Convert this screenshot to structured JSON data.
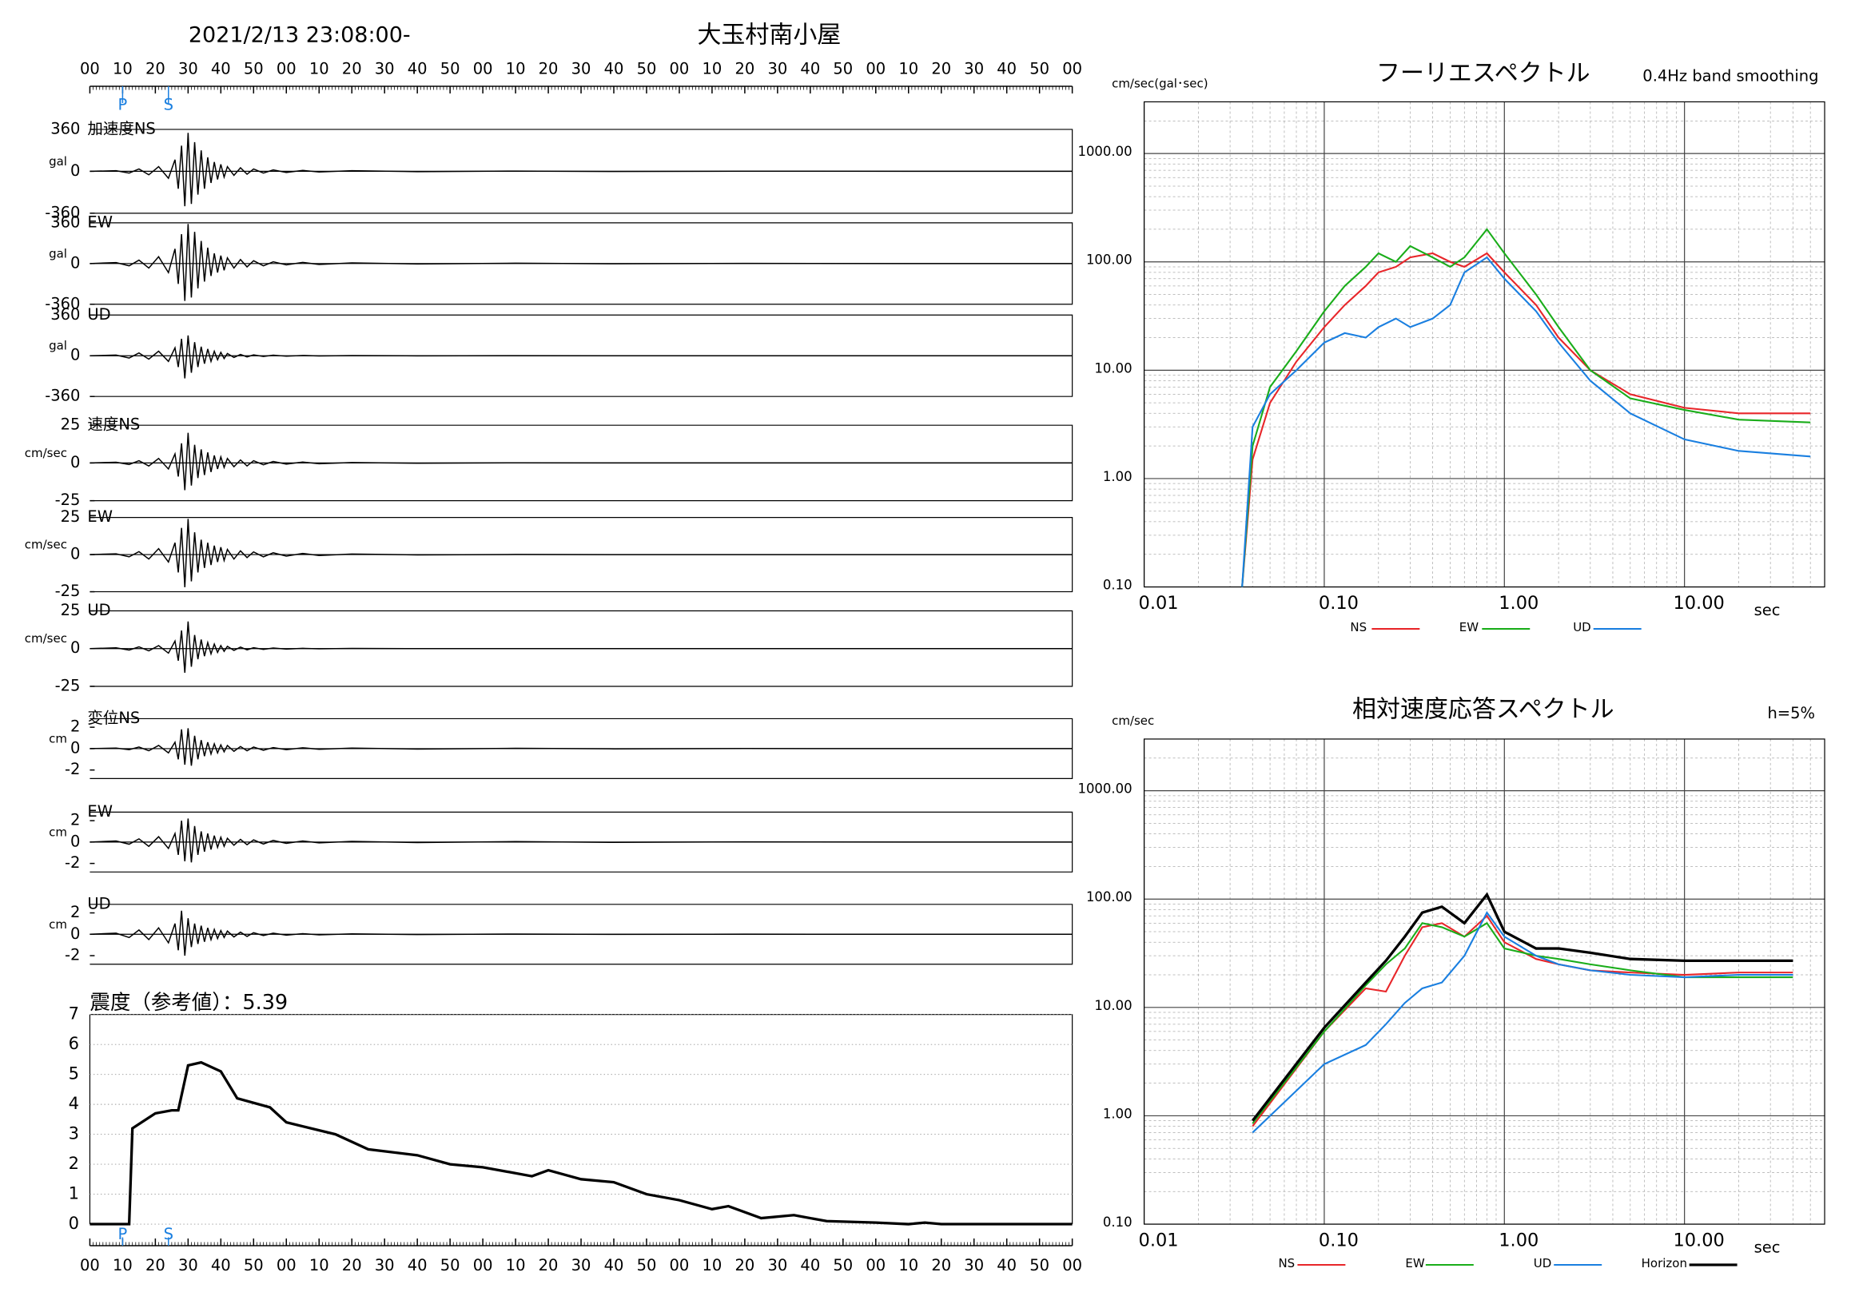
{
  "chart_data": [
    {
      "type": "line",
      "title": "2021/2/13 23:08:00-",
      "subtitle": "大玉村南小屋",
      "xlim": [
        0,
        300
      ],
      "xticks": [
        {
          "value": 0,
          "label": "00"
        },
        {
          "value": 10,
          "label": "10"
        },
        {
          "value": 20,
          "label": "20"
        },
        {
          "value": 30,
          "label": "30"
        },
        {
          "value": 40,
          "label": "40"
        },
        {
          "value": 50,
          "label": "50"
        },
        {
          "value": 60,
          "label": "00"
        },
        {
          "value": 70,
          "label": "10"
        },
        {
          "value": 80,
          "label": "20"
        },
        {
          "value": 90,
          "label": "30"
        },
        {
          "value": 100,
          "label": "40"
        },
        {
          "value": 110,
          "label": "50"
        },
        {
          "value": 120,
          "label": "00"
        },
        {
          "value": 130,
          "label": "10"
        },
        {
          "value": 140,
          "label": "20"
        },
        {
          "value": 150,
          "label": "30"
        },
        {
          "value": 160,
          "label": "40"
        },
        {
          "value": 170,
          "label": "50"
        },
        {
          "value": 180,
          "label": "00"
        },
        {
          "value": 190,
          "label": "10"
        },
        {
          "value": 200,
          "label": "20"
        },
        {
          "value": 210,
          "label": "30"
        },
        {
          "value": 220,
          "label": "40"
        },
        {
          "value": 230,
          "label": "50"
        },
        {
          "value": 240,
          "label": "00"
        },
        {
          "value": 250,
          "label": "10"
        },
        {
          "value": 260,
          "label": "20"
        },
        {
          "value": 270,
          "label": "30"
        },
        {
          "value": 280,
          "label": "40"
        },
        {
          "value": 290,
          "label": "50"
        },
        {
          "value": 300,
          "label": "00"
        }
      ],
      "phases": [
        {
          "label": "P",
          "value": 10
        },
        {
          "label": "S",
          "value": 24
        }
      ],
      "phase_color": "#1a7fe0",
      "x": [
        0,
        8,
        12,
        15,
        18,
        21,
        24,
        26,
        27,
        28,
        29,
        30,
        31,
        32,
        33,
        34,
        35,
        36,
        37,
        38,
        39,
        40,
        41,
        42,
        44,
        46,
        48,
        50,
        53,
        56,
        60,
        65,
        70,
        80,
        100,
        130,
        160,
        200,
        250,
        300
      ],
      "panels": [
        {
          "label": "加速度NS",
          "unit": "gal",
          "ylim": [
            -360,
            360
          ],
          "yticks": [
            -360,
            0,
            360
          ],
          "color": "#000000",
          "values": [
            0,
            5,
            -15,
            20,
            -30,
            40,
            -60,
            100,
            -150,
            220,
            -300,
            330,
            -280,
            250,
            -200,
            180,
            -150,
            120,
            -100,
            80,
            -70,
            60,
            -50,
            40,
            -35,
            30,
            -25,
            20,
            -15,
            12,
            -10,
            8,
            -6,
            5,
            -3,
            2,
            -2,
            1,
            0,
            0
          ]
        },
        {
          "label": "EW",
          "unit": "gal",
          "ylim": [
            -360,
            360
          ],
          "yticks": [
            -360,
            0,
            360
          ],
          "color": "#000000",
          "values": [
            0,
            8,
            -20,
            30,
            -40,
            60,
            -80,
            130,
            -180,
            260,
            -330,
            350,
            -300,
            280,
            -220,
            200,
            -160,
            140,
            -110,
            90,
            -80,
            70,
            -60,
            50,
            -40,
            35,
            -30,
            25,
            -20,
            15,
            -12,
            10,
            -8,
            6,
            -4,
            3,
            -2,
            1,
            0,
            0
          ]
        },
        {
          "label": "UD",
          "unit": "gal",
          "ylim": [
            -360,
            360
          ],
          "yticks": [
            -360,
            0,
            360
          ],
          "color": "#000000",
          "values": [
            0,
            6,
            -20,
            25,
            -30,
            40,
            -50,
            70,
            -100,
            150,
            -200,
            180,
            -150,
            120,
            -100,
            80,
            -70,
            60,
            -50,
            40,
            -35,
            30,
            -25,
            20,
            -15,
            12,
            -10,
            8,
            -6,
            5,
            -4,
            3,
            -2,
            2,
            -1,
            1,
            0,
            0,
            0,
            0
          ]
        },
        {
          "label": "速度NS",
          "unit": "cm/sec",
          "ylim": [
            -25,
            25
          ],
          "yticks": [
            -25,
            0,
            25
          ],
          "color": "#000000",
          "values": [
            0,
            0.5,
            -1,
            1.5,
            -2,
            3,
            -4,
            6,
            -9,
            13,
            -18,
            20,
            -15,
            12,
            -10,
            9,
            -8,
            7,
            -6,
            5,
            -4,
            4,
            -3,
            3,
            -2.5,
            2,
            -2,
            1.5,
            -1.2,
            1,
            -0.8,
            0.6,
            -0.5,
            0.3,
            -0.2,
            0.1,
            0,
            0,
            0,
            0
          ]
        },
        {
          "label": "EW",
          "unit": "cm/sec",
          "ylim": [
            -25,
            25
          ],
          "yticks": [
            -25,
            0,
            25
          ],
          "color": "#000000",
          "values": [
            0,
            0.5,
            -1.5,
            2,
            -3,
            4,
            -5,
            8,
            -12,
            18,
            -22,
            24,
            -18,
            15,
            -12,
            10,
            -9,
            8,
            -7,
            6,
            -5,
            5,
            -4,
            3.5,
            -3,
            2.5,
            -2,
            1.8,
            -1.5,
            1.2,
            -1,
            0.8,
            -0.6,
            0.4,
            -0.2,
            0.1,
            0,
            0,
            0,
            0
          ]
        },
        {
          "label": "UD",
          "unit": "cm/sec",
          "ylim": [
            -25,
            25
          ],
          "yticks": [
            -25,
            0,
            25
          ],
          "color": "#000000",
          "values": [
            0,
            0.5,
            -1,
            1.2,
            -1.5,
            2,
            -3,
            5,
            -8,
            12,
            -16,
            18,
            -12,
            9,
            -7,
            6,
            -5,
            4,
            -3.5,
            3,
            -2.5,
            2,
            -1.8,
            1.5,
            -1.2,
            1,
            -0.8,
            0.6,
            -0.5,
            0.4,
            -0.3,
            0.2,
            -0.1,
            0.1,
            0,
            0,
            0,
            0,
            0,
            0
          ]
        },
        {
          "label": "変位NS",
          "unit": "cm",
          "ylim": [
            -2.8,
            2.8
          ],
          "yticks": [
            -2,
            0,
            2
          ],
          "color": "#000000",
          "values": [
            0,
            0.05,
            -0.1,
            0.15,
            -0.2,
            0.3,
            -0.4,
            0.6,
            -1,
            1.8,
            -1.5,
            1.9,
            -1.6,
            1.2,
            -1,
            0.8,
            -0.7,
            0.6,
            -0.5,
            0.45,
            -0.4,
            0.35,
            -0.3,
            0.3,
            -0.25,
            0.2,
            -0.2,
            0.15,
            -0.15,
            0.1,
            -0.1,
            0.08,
            -0.06,
            0.05,
            -0.04,
            0.03,
            -0.02,
            0.01,
            0,
            0
          ]
        },
        {
          "label": "EW",
          "unit": "cm",
          "ylim": [
            -2.8,
            2.8
          ],
          "yticks": [
            -2,
            0,
            2
          ],
          "color": "#000000",
          "values": [
            0,
            0.1,
            -0.2,
            0.3,
            -0.4,
            0.5,
            -0.6,
            0.8,
            -1.2,
            2,
            -1.8,
            2.2,
            -1.9,
            1.5,
            -1.2,
            1,
            -0.9,
            0.8,
            -0.7,
            0.6,
            -0.5,
            0.45,
            -0.4,
            0.35,
            -0.3,
            0.25,
            -0.25,
            0.2,
            -0.18,
            0.15,
            -0.12,
            0.1,
            -0.08,
            0.06,
            -0.05,
            0.04,
            -0.03,
            0.02,
            0,
            0
          ]
        },
        {
          "label": "UD",
          "unit": "cm",
          "ylim": [
            -2.8,
            2.8
          ],
          "yticks": [
            -2,
            0,
            2
          ],
          "color": "#000000",
          "values": [
            0,
            0.1,
            -0.3,
            0.4,
            -0.5,
            0.6,
            -0.8,
            1,
            -1.5,
            2.2,
            -2,
            1.5,
            -1.2,
            1,
            -0.9,
            0.8,
            -0.7,
            0.6,
            -0.5,
            0.45,
            -0.4,
            0.35,
            -0.3,
            0.3,
            -0.25,
            0.2,
            -0.2,
            0.15,
            -0.12,
            0.1,
            -0.08,
            0.06,
            -0.05,
            0.04,
            -0.03,
            0.02,
            -0.01,
            0.01,
            0,
            0
          ]
        }
      ]
    },
    {
      "type": "line",
      "title": "震度（参考値）：5.39",
      "ylim": [
        0,
        7
      ],
      "yticks": [
        0,
        1,
        2,
        3,
        4,
        5,
        6,
        7
      ],
      "grid": true,
      "color": "#000000",
      "x": [
        0,
        12,
        13,
        20,
        25,
        27,
        30,
        34,
        40,
        45,
        55,
        60,
        75,
        85,
        100,
        110,
        120,
        135,
        140,
        150,
        160,
        170,
        180,
        190,
        195,
        205,
        215,
        225,
        240,
        250,
        255,
        260,
        300
      ],
      "values": [
        0,
        0,
        3.2,
        3.7,
        3.8,
        3.8,
        5.3,
        5.4,
        5.1,
        4.2,
        3.9,
        3.4,
        3.0,
        2.5,
        2.3,
        2.0,
        1.9,
        1.6,
        1.8,
        1.5,
        1.4,
        1.0,
        0.8,
        0.5,
        0.6,
        0.2,
        0.3,
        0.1,
        0.05,
        0,
        0.05,
        0,
        0
      ]
    },
    {
      "type": "line",
      "title": "フーリエスペクトル",
      "subtitle": "0.4Hz band smoothing",
      "y_label": "cm/sec(gal･sec)",
      "x_label": "sec",
      "log_x": true,
      "log_y": true,
      "grid": true,
      "xlim": [
        0.01,
        60
      ],
      "xticks": [
        {
          "value": 0.01,
          "label": "0.01"
        },
        {
          "value": 0.1,
          "label": "0.10"
        },
        {
          "value": 1,
          "label": "1.00"
        },
        {
          "value": 10,
          "label": "10.00"
        }
      ],
      "ylim": [
        0.1,
        3000
      ],
      "yticks": [
        {
          "value": 0.1,
          "label": "0.10"
        },
        {
          "value": 1,
          "label": "1.00"
        },
        {
          "value": 10,
          "label": "10.00"
        },
        {
          "value": 100,
          "label": "100.00"
        },
        {
          "value": 1000,
          "label": "1000.00"
        }
      ],
      "x": [
        0.035,
        0.04,
        0.05,
        0.07,
        0.1,
        0.13,
        0.17,
        0.2,
        0.25,
        0.3,
        0.4,
        0.5,
        0.6,
        0.8,
        1,
        1.5,
        2,
        3,
        5,
        10,
        20,
        50
      ],
      "series": [
        {
          "name": "NS",
          "color": "#e8262a",
          "values": [
            0.1,
            1.5,
            5,
            12,
            25,
            40,
            60,
            80,
            90,
            110,
            120,
            100,
            90,
            120,
            80,
            40,
            20,
            10,
            6,
            4.5,
            4,
            4
          ]
        },
        {
          "name": "EW",
          "color": "#1aad1a",
          "values": [
            0.1,
            2,
            7,
            15,
            35,
            60,
            90,
            120,
            100,
            140,
            110,
            90,
            110,
            200,
            120,
            50,
            25,
            10,
            5.5,
            4.3,
            3.5,
            3.3
          ]
        },
        {
          "name": "UD",
          "color": "#1a7fe0",
          "values": [
            0.1,
            3,
            6,
            10,
            18,
            22,
            20,
            25,
            30,
            25,
            30,
            40,
            80,
            110,
            70,
            35,
            18,
            8,
            4,
            2.3,
            1.8,
            1.6
          ]
        }
      ]
    },
    {
      "type": "line",
      "title": "相対速度応答スペクトル",
      "subtitle": "h=5%",
      "y_label": "cm/sec",
      "x_label": "sec",
      "log_x": true,
      "log_y": true,
      "grid": true,
      "xlim": [
        0.01,
        60
      ],
      "xticks": [
        {
          "value": 0.01,
          "label": "0.01"
        },
        {
          "value": 0.1,
          "label": "0.10"
        },
        {
          "value": 1,
          "label": "1.00"
        },
        {
          "value": 10,
          "label": "10.00"
        }
      ],
      "ylim": [
        0.1,
        3000
      ],
      "yticks": [
        {
          "value": 0.1,
          "label": "0.10"
        },
        {
          "value": 1,
          "label": "1.00"
        },
        {
          "value": 10,
          "label": "10.00"
        },
        {
          "value": 100,
          "label": "100.00"
        },
        {
          "value": 1000,
          "label": "1000.00"
        }
      ],
      "x": [
        0.04,
        0.1,
        0.17,
        0.22,
        0.28,
        0.35,
        0.45,
        0.6,
        0.8,
        1.0,
        1.5,
        2,
        3,
        5,
        10,
        20,
        40
      ],
      "series": [
        {
          "name": "NS",
          "color": "#e8262a",
          "values": [
            0.8,
            6,
            15,
            14,
            30,
            55,
            60,
            45,
            70,
            40,
            28,
            25,
            22,
            21,
            20,
            21,
            21
          ]
        },
        {
          "name": "EW",
          "color": "#1aad1a",
          "values": [
            0.85,
            6,
            16,
            25,
            35,
            60,
            55,
            45,
            60,
            35,
            30,
            28,
            25,
            22,
            19,
            19,
            19
          ]
        },
        {
          "name": "UD",
          "color": "#1a7fe0",
          "values": [
            0.7,
            3,
            4.5,
            7,
            11,
            15,
            17,
            30,
            75,
            45,
            30,
            25,
            22,
            20,
            19,
            20,
            20
          ]
        },
        {
          "name": "Horizon",
          "color": "#000000",
          "values": [
            0.9,
            6.5,
            17,
            27,
            45,
            75,
            85,
            60,
            110,
            50,
            35,
            35,
            32,
            28,
            27,
            27,
            27
          ]
        }
      ]
    }
  ]
}
